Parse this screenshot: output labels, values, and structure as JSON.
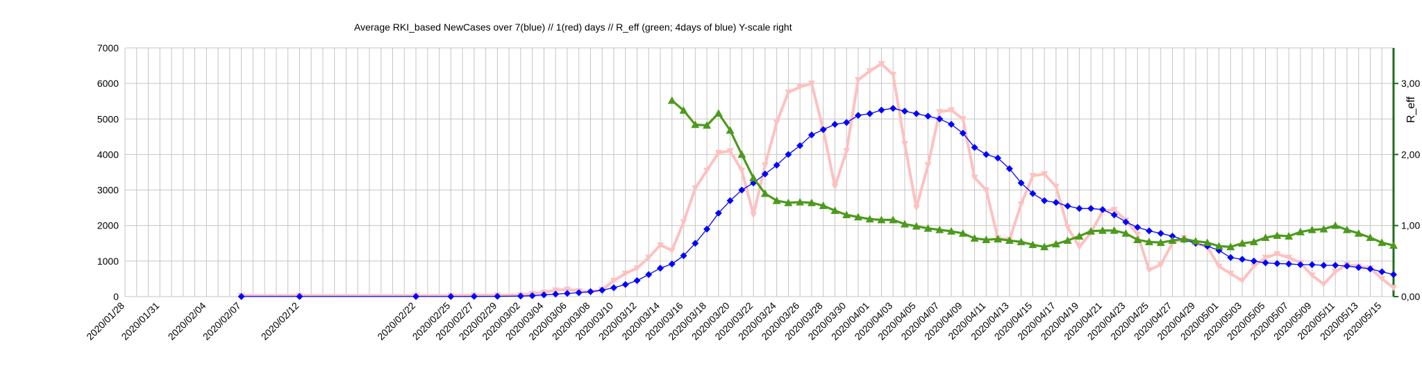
{
  "chart_data": {
    "type": "line",
    "title": "Average RKI_based NewCases over 7(blue) // 1(red) days //  R_eff (green; 4days of blue) Y-scale right",
    "xlabel": "",
    "ylabel": "",
    "y2label": "R_eff",
    "ylim": [
      0,
      7000
    ],
    "y2lim": [
      0,
      3.5
    ],
    "yticks": [
      "0",
      "1000",
      "2000",
      "3000",
      "4000",
      "5000",
      "6000",
      "7000"
    ],
    "y2ticks": [
      "0,00",
      "1,00",
      "2,00",
      "3,00"
    ],
    "x_start": "2020/01/28",
    "x_end": "2020/05/16",
    "xticks": [
      "2020/01/28",
      "2020/01/31",
      "2020/02/04",
      "2020/02/07",
      "2020/02/12",
      "2020/02/22",
      "2020/02/25",
      "2020/02/27",
      "2020/02/29",
      "2020/03/02",
      "2020/03/04",
      "2020/03/06",
      "2020/03/08",
      "2020/03/10",
      "2020/03/12",
      "2020/03/14",
      "2020/03/16",
      "2020/03/18",
      "2020/03/20",
      "2020/03/22",
      "2020/03/24",
      "2020/03/26",
      "2020/03/28",
      "2020/03/30",
      "2020/04/01",
      "2020/04/03",
      "2020/04/05",
      "2020/04/07",
      "2020/04/09",
      "2020/04/11",
      "2020/04/13",
      "2020/04/15",
      "2020/04/17",
      "2020/04/19",
      "2020/04/21",
      "2020/04/23",
      "2020/04/25",
      "2020/04/27",
      "2020/04/29",
      "2020/05/01",
      "2020/05/03",
      "2020/05/05",
      "2020/05/07",
      "2020/05/09",
      "2020/05/11",
      "2020/05/13",
      "2020/05/15"
    ],
    "grid": true,
    "legend": "none",
    "series": [
      {
        "axis": "left",
        "color": "#0000ff",
        "marker": "diamond",
        "x": [
          "2020/02/07",
          "2020/02/12",
          "2020/02/22",
          "2020/02/25",
          "2020/02/27",
          "2020/02/29",
          "2020/03/02",
          "2020/03/03",
          "2020/03/04",
          "2020/03/05",
          "2020/03/06",
          "2020/03/07",
          "2020/03/08",
          "2020/03/09",
          "2020/03/10",
          "2020/03/11",
          "2020/03/12",
          "2020/03/13",
          "2020/03/14",
          "2020/03/15",
          "2020/03/16",
          "2020/03/17",
          "2020/03/18",
          "2020/03/19",
          "2020/03/20",
          "2020/03/21",
          "2020/03/22",
          "2020/03/23",
          "2020/03/24",
          "2020/03/25",
          "2020/03/26",
          "2020/03/27",
          "2020/03/28",
          "2020/03/29",
          "2020/03/30",
          "2020/03/31",
          "2020/04/01",
          "2020/04/02",
          "2020/04/03",
          "2020/04/04",
          "2020/04/05",
          "2020/04/06",
          "2020/04/07",
          "2020/04/08",
          "2020/04/09",
          "2020/04/10",
          "2020/04/11",
          "2020/04/12",
          "2020/04/13",
          "2020/04/14",
          "2020/04/15",
          "2020/04/16",
          "2020/04/17",
          "2020/04/18",
          "2020/04/19",
          "2020/04/20",
          "2020/04/21",
          "2020/04/22",
          "2020/04/23",
          "2020/04/24",
          "2020/04/25",
          "2020/04/26",
          "2020/04/27",
          "2020/04/28",
          "2020/04/29",
          "2020/04/30",
          "2020/05/01",
          "2020/05/02",
          "2020/05/03",
          "2020/05/04",
          "2020/05/05",
          "2020/05/06",
          "2020/05/07",
          "2020/05/08",
          "2020/05/09",
          "2020/05/10",
          "2020/05/11",
          "2020/05/12",
          "2020/05/13",
          "2020/05/14",
          "2020/05/15",
          "2020/05/16"
        ],
        "values": [
          2,
          2,
          2,
          2,
          4,
          8,
          15,
          25,
          50,
          70,
          90,
          110,
          140,
          180,
          250,
          340,
          450,
          620,
          800,
          920,
          1150,
          1500,
          1900,
          2350,
          2700,
          3000,
          3200,
          3450,
          3700,
          4000,
          4250,
          4550,
          4700,
          4850,
          4900,
          5100,
          5150,
          5250,
          5300,
          5220,
          5150,
          5080,
          5000,
          4850,
          4600,
          4200,
          4000,
          3900,
          3600,
          3200,
          2900,
          2700,
          2650,
          2550,
          2480,
          2480,
          2450,
          2300,
          2100,
          1950,
          1850,
          1780,
          1700,
          1600,
          1500,
          1420,
          1300,
          1100,
          1050,
          1000,
          950,
          930,
          920,
          900,
          900,
          880,
          880,
          860,
          820,
          780,
          700,
          620
        ]
      },
      {
        "axis": "left",
        "color": "#ffc0c0",
        "marker": "triangle-down",
        "x": [
          "2020/02/07",
          "2020/02/12",
          "2020/02/22",
          "2020/02/25",
          "2020/02/27",
          "2020/02/29",
          "2020/03/02",
          "2020/03/03",
          "2020/03/04",
          "2020/03/05",
          "2020/03/06",
          "2020/03/07",
          "2020/03/08",
          "2020/03/09",
          "2020/03/10",
          "2020/03/11",
          "2020/03/12",
          "2020/03/13",
          "2020/03/14",
          "2020/03/15",
          "2020/03/16",
          "2020/03/17",
          "2020/03/18",
          "2020/03/19",
          "2020/03/20",
          "2020/03/21",
          "2020/03/22",
          "2020/03/23",
          "2020/03/24",
          "2020/03/25",
          "2020/03/26",
          "2020/03/27",
          "2020/03/28",
          "2020/03/29",
          "2020/03/30",
          "2020/03/31",
          "2020/04/01",
          "2020/04/02",
          "2020/04/03",
          "2020/04/04",
          "2020/04/05",
          "2020/04/06",
          "2020/04/07",
          "2020/04/08",
          "2020/04/09",
          "2020/04/10",
          "2020/04/11",
          "2020/04/12",
          "2020/04/13",
          "2020/04/14",
          "2020/04/15",
          "2020/04/16",
          "2020/04/17",
          "2020/04/18",
          "2020/04/19",
          "2020/04/20",
          "2020/04/21",
          "2020/04/22",
          "2020/04/23",
          "2020/04/24",
          "2020/04/25",
          "2020/04/26",
          "2020/04/27",
          "2020/04/28",
          "2020/04/29",
          "2020/04/30",
          "2020/05/01",
          "2020/05/02",
          "2020/05/03",
          "2020/05/04",
          "2020/05/05",
          "2020/05/06",
          "2020/05/07",
          "2020/05/08",
          "2020/05/09",
          "2020/05/10",
          "2020/05/11",
          "2020/05/12",
          "2020/05/13",
          "2020/05/14",
          "2020/05/15",
          "2020/05/16"
        ],
        "values": [
          30,
          30,
          30,
          30,
          40,
          40,
          50,
          80,
          120,
          180,
          200,
          160,
          120,
          200,
          450,
          650,
          800,
          1100,
          1450,
          1300,
          2100,
          3050,
          3550,
          4050,
          4100,
          3550,
          2300,
          3700,
          4900,
          5750,
          5900,
          6000,
          4700,
          3100,
          4100,
          6100,
          6350,
          6550,
          6250,
          4300,
          2500,
          3700,
          5200,
          5250,
          5000,
          3350,
          3000,
          1650,
          1600,
          2600,
          3400,
          3450,
          3100,
          1950,
          1400,
          1800,
          2400,
          2450,
          2150,
          1750,
          750,
          900,
          1500,
          1650,
          1500,
          1400,
          850,
          650,
          450,
          850,
          1100,
          1200,
          1100,
          950,
          600,
          350,
          700,
          900,
          850,
          800,
          500,
          250
        ]
      },
      {
        "axis": "right",
        "color": "#4c9a1c",
        "marker": "triangle-up",
        "x": [
          "2020/03/15",
          "2020/03/16",
          "2020/03/17",
          "2020/03/18",
          "2020/03/19",
          "2020/03/20",
          "2020/03/21",
          "2020/03/22",
          "2020/03/23",
          "2020/03/24",
          "2020/03/25",
          "2020/03/26",
          "2020/03/27",
          "2020/03/28",
          "2020/03/29",
          "2020/03/30",
          "2020/03/31",
          "2020/04/01",
          "2020/04/02",
          "2020/04/03",
          "2020/04/04",
          "2020/04/05",
          "2020/04/06",
          "2020/04/07",
          "2020/04/08",
          "2020/04/09",
          "2020/04/10",
          "2020/04/11",
          "2020/04/12",
          "2020/04/13",
          "2020/04/14",
          "2020/04/15",
          "2020/04/16",
          "2020/04/17",
          "2020/04/18",
          "2020/04/19",
          "2020/04/20",
          "2020/04/21",
          "2020/04/22",
          "2020/04/23",
          "2020/04/24",
          "2020/04/25",
          "2020/04/26",
          "2020/04/27",
          "2020/04/28",
          "2020/04/29",
          "2020/04/30",
          "2020/05/01",
          "2020/05/02",
          "2020/05/03",
          "2020/05/04",
          "2020/05/05",
          "2020/05/06",
          "2020/05/07",
          "2020/05/08",
          "2020/05/09",
          "2020/05/10",
          "2020/05/11",
          "2020/05/12",
          "2020/05/13",
          "2020/05/14",
          "2020/05/15",
          "2020/05/16"
        ],
        "values": [
          2.76,
          2.62,
          2.42,
          2.41,
          2.58,
          2.34,
          2.0,
          1.67,
          1.45,
          1.35,
          1.32,
          1.33,
          1.32,
          1.28,
          1.21,
          1.15,
          1.12,
          1.09,
          1.08,
          1.08,
          1.02,
          0.99,
          0.96,
          0.94,
          0.92,
          0.89,
          0.82,
          0.8,
          0.81,
          0.79,
          0.77,
          0.73,
          0.7,
          0.74,
          0.79,
          0.85,
          0.92,
          0.93,
          0.93,
          0.89,
          0.8,
          0.77,
          0.76,
          0.79,
          0.81,
          0.78,
          0.76,
          0.71,
          0.7,
          0.75,
          0.77,
          0.83,
          0.86,
          0.85,
          0.91,
          0.94,
          0.95,
          1.0,
          0.94,
          0.89,
          0.83,
          0.76,
          0.72
        ]
      }
    ]
  }
}
